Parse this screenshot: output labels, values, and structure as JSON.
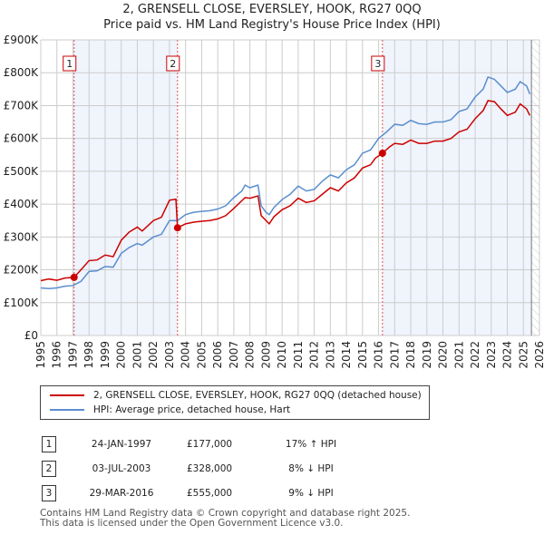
{
  "chart_data": {
    "type": "line",
    "title": "2, GRENSELL CLOSE, EVERSLEY, HOOK, RG27 0QQ",
    "subtitle": "Price paid vs. HM Land Registry's House Price Index (HPI)",
    "xlim": [
      1995,
      2026
    ],
    "ylim": [
      0,
      900000
    ],
    "x_ticks": [
      "1995",
      "1996",
      "1997",
      "1998",
      "1999",
      "2000",
      "2001",
      "2002",
      "2003",
      "2004",
      "2005",
      "2006",
      "2007",
      "2008",
      "2009",
      "2010",
      "2011",
      "2012",
      "2013",
      "2014",
      "2015",
      "2016",
      "2017",
      "2018",
      "2019",
      "2020",
      "2021",
      "2022",
      "2023",
      "2024",
      "2025",
      "2026"
    ],
    "y_ticks": [
      {
        "v": 0,
        "label": "£0"
      },
      {
        "v": 100000,
        "label": "£100K"
      },
      {
        "v": 200000,
        "label": "£200K"
      },
      {
        "v": 300000,
        "label": "£300K"
      },
      {
        "v": 400000,
        "label": "£400K"
      },
      {
        "v": 500000,
        "label": "£500K"
      },
      {
        "v": 600000,
        "label": "£600K"
      },
      {
        "v": 700000,
        "label": "£700K"
      },
      {
        "v": 800000,
        "label": "£800K"
      },
      {
        "v": 900000,
        "label": "£900K"
      }
    ],
    "grid": true,
    "shaded_ranges": [
      [
        1997.07,
        2003.5
      ],
      [
        2016.24,
        2025.5
      ]
    ],
    "forecast_hatch_from": 2025.5,
    "series": [
      {
        "name": "2, GRENSELL CLOSE, EVERSLEY, HOOK, RG27 0QQ (detached house)",
        "color": "#cc0000",
        "points": [
          [
            1995,
            167
          ],
          [
            1995.5,
            172
          ],
          [
            1996,
            168
          ],
          [
            1996.5,
            175
          ],
          [
            1997.07,
            177
          ],
          [
            1997.5,
            200
          ],
          [
            1998,
            228
          ],
          [
            1998.5,
            230
          ],
          [
            1999,
            245
          ],
          [
            1999.5,
            240
          ],
          [
            2000,
            290
          ],
          [
            2000.5,
            315
          ],
          [
            2001,
            330
          ],
          [
            2001.3,
            318
          ],
          [
            2002,
            350
          ],
          [
            2002.5,
            360
          ],
          [
            2003,
            412
          ],
          [
            2003.4,
            415
          ],
          [
            2003.5,
            328
          ],
          [
            2004,
            340
          ],
          [
            2004.5,
            345
          ],
          [
            2005,
            348
          ],
          [
            2005.5,
            350
          ],
          [
            2006,
            355
          ],
          [
            2006.5,
            365
          ],
          [
            2007,
            387
          ],
          [
            2007.7,
            420
          ],
          [
            2008,
            418
          ],
          [
            2008.5,
            425
          ],
          [
            2008.7,
            365
          ],
          [
            2009.2,
            340
          ],
          [
            2009.5,
            362
          ],
          [
            2010,
            383
          ],
          [
            2010.5,
            395
          ],
          [
            2011,
            418
          ],
          [
            2011.5,
            405
          ],
          [
            2012,
            410
          ],
          [
            2012.5,
            430
          ],
          [
            2013,
            450
          ],
          [
            2013.5,
            440
          ],
          [
            2014,
            465
          ],
          [
            2014.5,
            480
          ],
          [
            2015,
            510
          ],
          [
            2015.5,
            520
          ],
          [
            2015.8,
            540
          ],
          [
            2016.24,
            555
          ],
          [
            2016.7,
            575
          ],
          [
            2017,
            585
          ],
          [
            2017.5,
            582
          ],
          [
            2018,
            595
          ],
          [
            2018.5,
            585
          ],
          [
            2019,
            585
          ],
          [
            2019.5,
            592
          ],
          [
            2020,
            592
          ],
          [
            2020.5,
            600
          ],
          [
            2021,
            620
          ],
          [
            2021.5,
            628
          ],
          [
            2022,
            660
          ],
          [
            2022.5,
            685
          ],
          [
            2022.8,
            715
          ],
          [
            2023.2,
            712
          ],
          [
            2023.6,
            690
          ],
          [
            2024,
            670
          ],
          [
            2024.5,
            680
          ],
          [
            2024.8,
            705
          ],
          [
            2025.2,
            690
          ],
          [
            2025.4,
            670
          ]
        ]
      },
      {
        "name": "HPI: Average price, detached house, Hart",
        "color": "#5b8fd0",
        "points": [
          [
            1995,
            145
          ],
          [
            1995.5,
            143
          ],
          [
            1996,
            145
          ],
          [
            1996.5,
            150
          ],
          [
            1997,
            152
          ],
          [
            1997.5,
            165
          ],
          [
            1998,
            195
          ],
          [
            1998.5,
            197
          ],
          [
            1999,
            210
          ],
          [
            1999.5,
            208
          ],
          [
            2000,
            250
          ],
          [
            2000.5,
            268
          ],
          [
            2001,
            280
          ],
          [
            2001.3,
            275
          ],
          [
            2002,
            300
          ],
          [
            2002.5,
            308
          ],
          [
            2003,
            350
          ],
          [
            2003.5,
            350
          ],
          [
            2004,
            368
          ],
          [
            2004.5,
            375
          ],
          [
            2005,
            378
          ],
          [
            2005.5,
            380
          ],
          [
            2006,
            385
          ],
          [
            2006.5,
            395
          ],
          [
            2007,
            420
          ],
          [
            2007.5,
            440
          ],
          [
            2007.7,
            458
          ],
          [
            2008,
            450
          ],
          [
            2008.5,
            458
          ],
          [
            2008.7,
            395
          ],
          [
            2009,
            375
          ],
          [
            2009.2,
            368
          ],
          [
            2009.5,
            390
          ],
          [
            2010,
            414
          ],
          [
            2010.5,
            430
          ],
          [
            2011,
            455
          ],
          [
            2011.5,
            440
          ],
          [
            2012,
            445
          ],
          [
            2012.5,
            470
          ],
          [
            2013,
            489
          ],
          [
            2013.5,
            480
          ],
          [
            2014,
            505
          ],
          [
            2014.5,
            520
          ],
          [
            2015,
            555
          ],
          [
            2015.5,
            565
          ],
          [
            2016,
            600
          ],
          [
            2016.5,
            620
          ],
          [
            2017,
            643
          ],
          [
            2017.5,
            640
          ],
          [
            2018,
            655
          ],
          [
            2018.5,
            645
          ],
          [
            2019,
            643
          ],
          [
            2019.5,
            650
          ],
          [
            2020,
            650
          ],
          [
            2020.5,
            657
          ],
          [
            2021,
            682
          ],
          [
            2021.5,
            690
          ],
          [
            2022,
            726
          ],
          [
            2022.5,
            750
          ],
          [
            2022.8,
            787
          ],
          [
            2023.2,
            780
          ],
          [
            2023.6,
            760
          ],
          [
            2024,
            740
          ],
          [
            2024.5,
            750
          ],
          [
            2024.8,
            773
          ],
          [
            2025.2,
            760
          ],
          [
            2025.4,
            735
          ]
        ]
      }
    ],
    "sales": [
      {
        "label": "1",
        "x": 1997.07,
        "y": 177
      },
      {
        "label": "2",
        "x": 2003.5,
        "y": 328
      },
      {
        "label": "3",
        "x": 2016.24,
        "y": 555
      }
    ]
  },
  "legend": {
    "red": "2, GRENSELL CLOSE, EVERSLEY, HOOK, RG27 0QQ (detached house)",
    "blue": "HPI: Average price, detached house, Hart"
  },
  "transactions": [
    {
      "num": "1",
      "date": "24-JAN-1997",
      "price": "£177,000",
      "hpi": "17% ↑ HPI"
    },
    {
      "num": "2",
      "date": "03-JUL-2003",
      "price": "£328,000",
      "hpi": "8% ↓ HPI"
    },
    {
      "num": "3",
      "date": "29-MAR-2016",
      "price": "£555,000",
      "hpi": "9% ↓ HPI"
    }
  ],
  "footer": {
    "line1": "Contains HM Land Registry data © Crown copyright and database right 2025.",
    "line2": "This data is licensed under the Open Government Licence v3.0."
  }
}
